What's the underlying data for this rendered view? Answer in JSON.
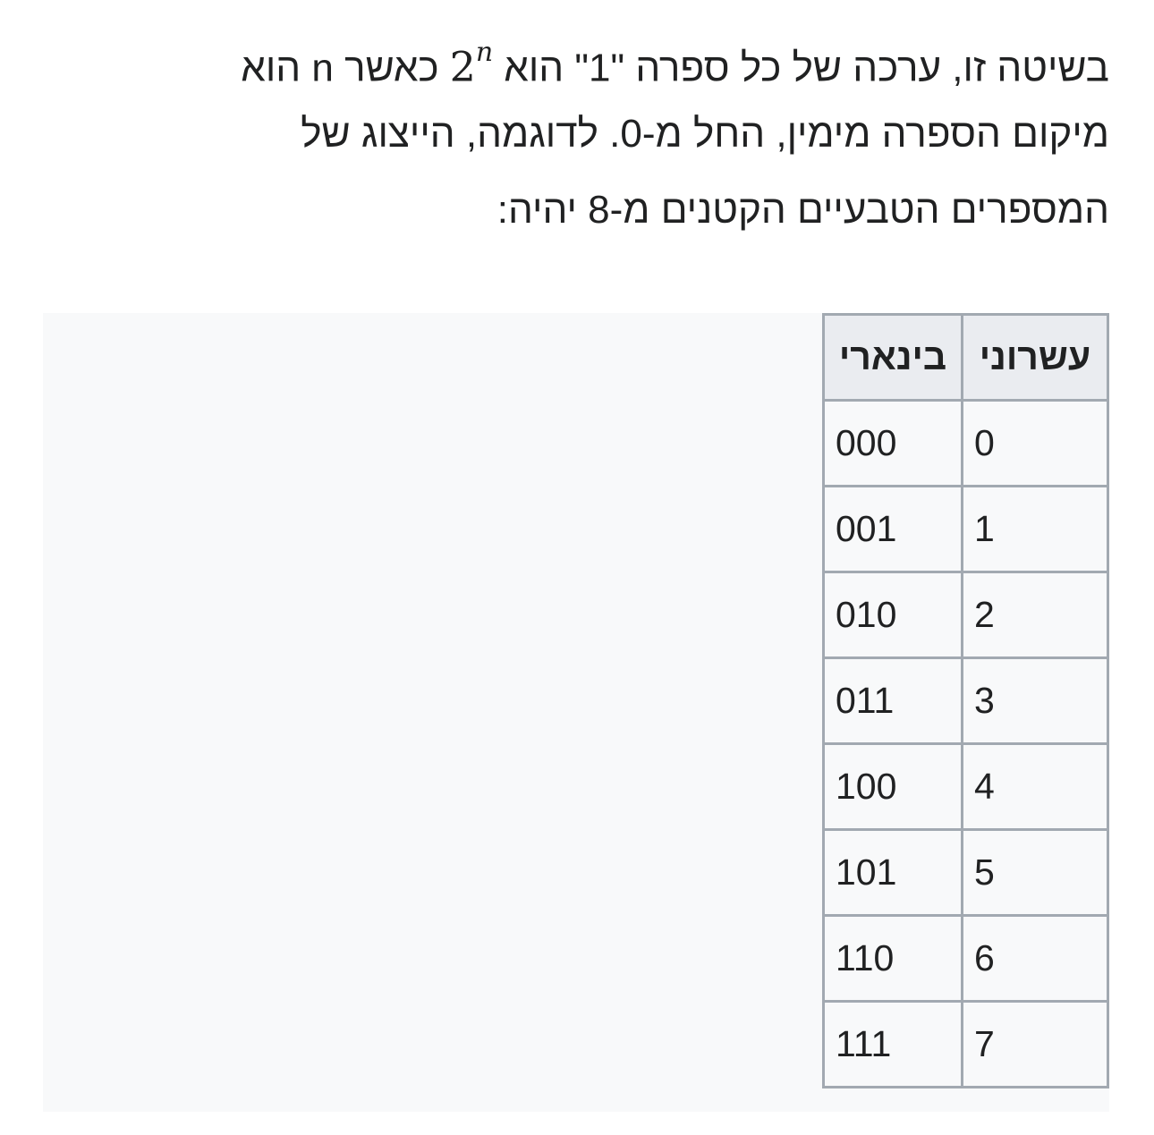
{
  "paragraph": {
    "line1_before": "בשיטה זו, ערכה של כל ספרה \"1\" הוא",
    "math_base": "2",
    "math_exp": "n",
    "line1_after": "כאשר n הוא",
    "line2": "מיקום הספרה מימין, החל מ-0. לדוגמה, הייצוג של",
    "line3": "המספרים הטבעיים הקטנים מ-8 יהיה:"
  },
  "table": {
    "headers": [
      "עשרוני",
      "בינארי"
    ],
    "rows": [
      [
        "0",
        "000"
      ],
      [
        "1",
        "001"
      ],
      [
        "2",
        "010"
      ],
      [
        "3",
        "011"
      ],
      [
        "4",
        "100"
      ],
      [
        "5",
        "101"
      ],
      [
        "6",
        "110"
      ],
      [
        "7",
        "111"
      ]
    ]
  },
  "colors": {
    "header_bg": "#eaecf0",
    "cell_bg": "#f8f9fa",
    "border": "#a2a9b1",
    "text": "#202122"
  }
}
